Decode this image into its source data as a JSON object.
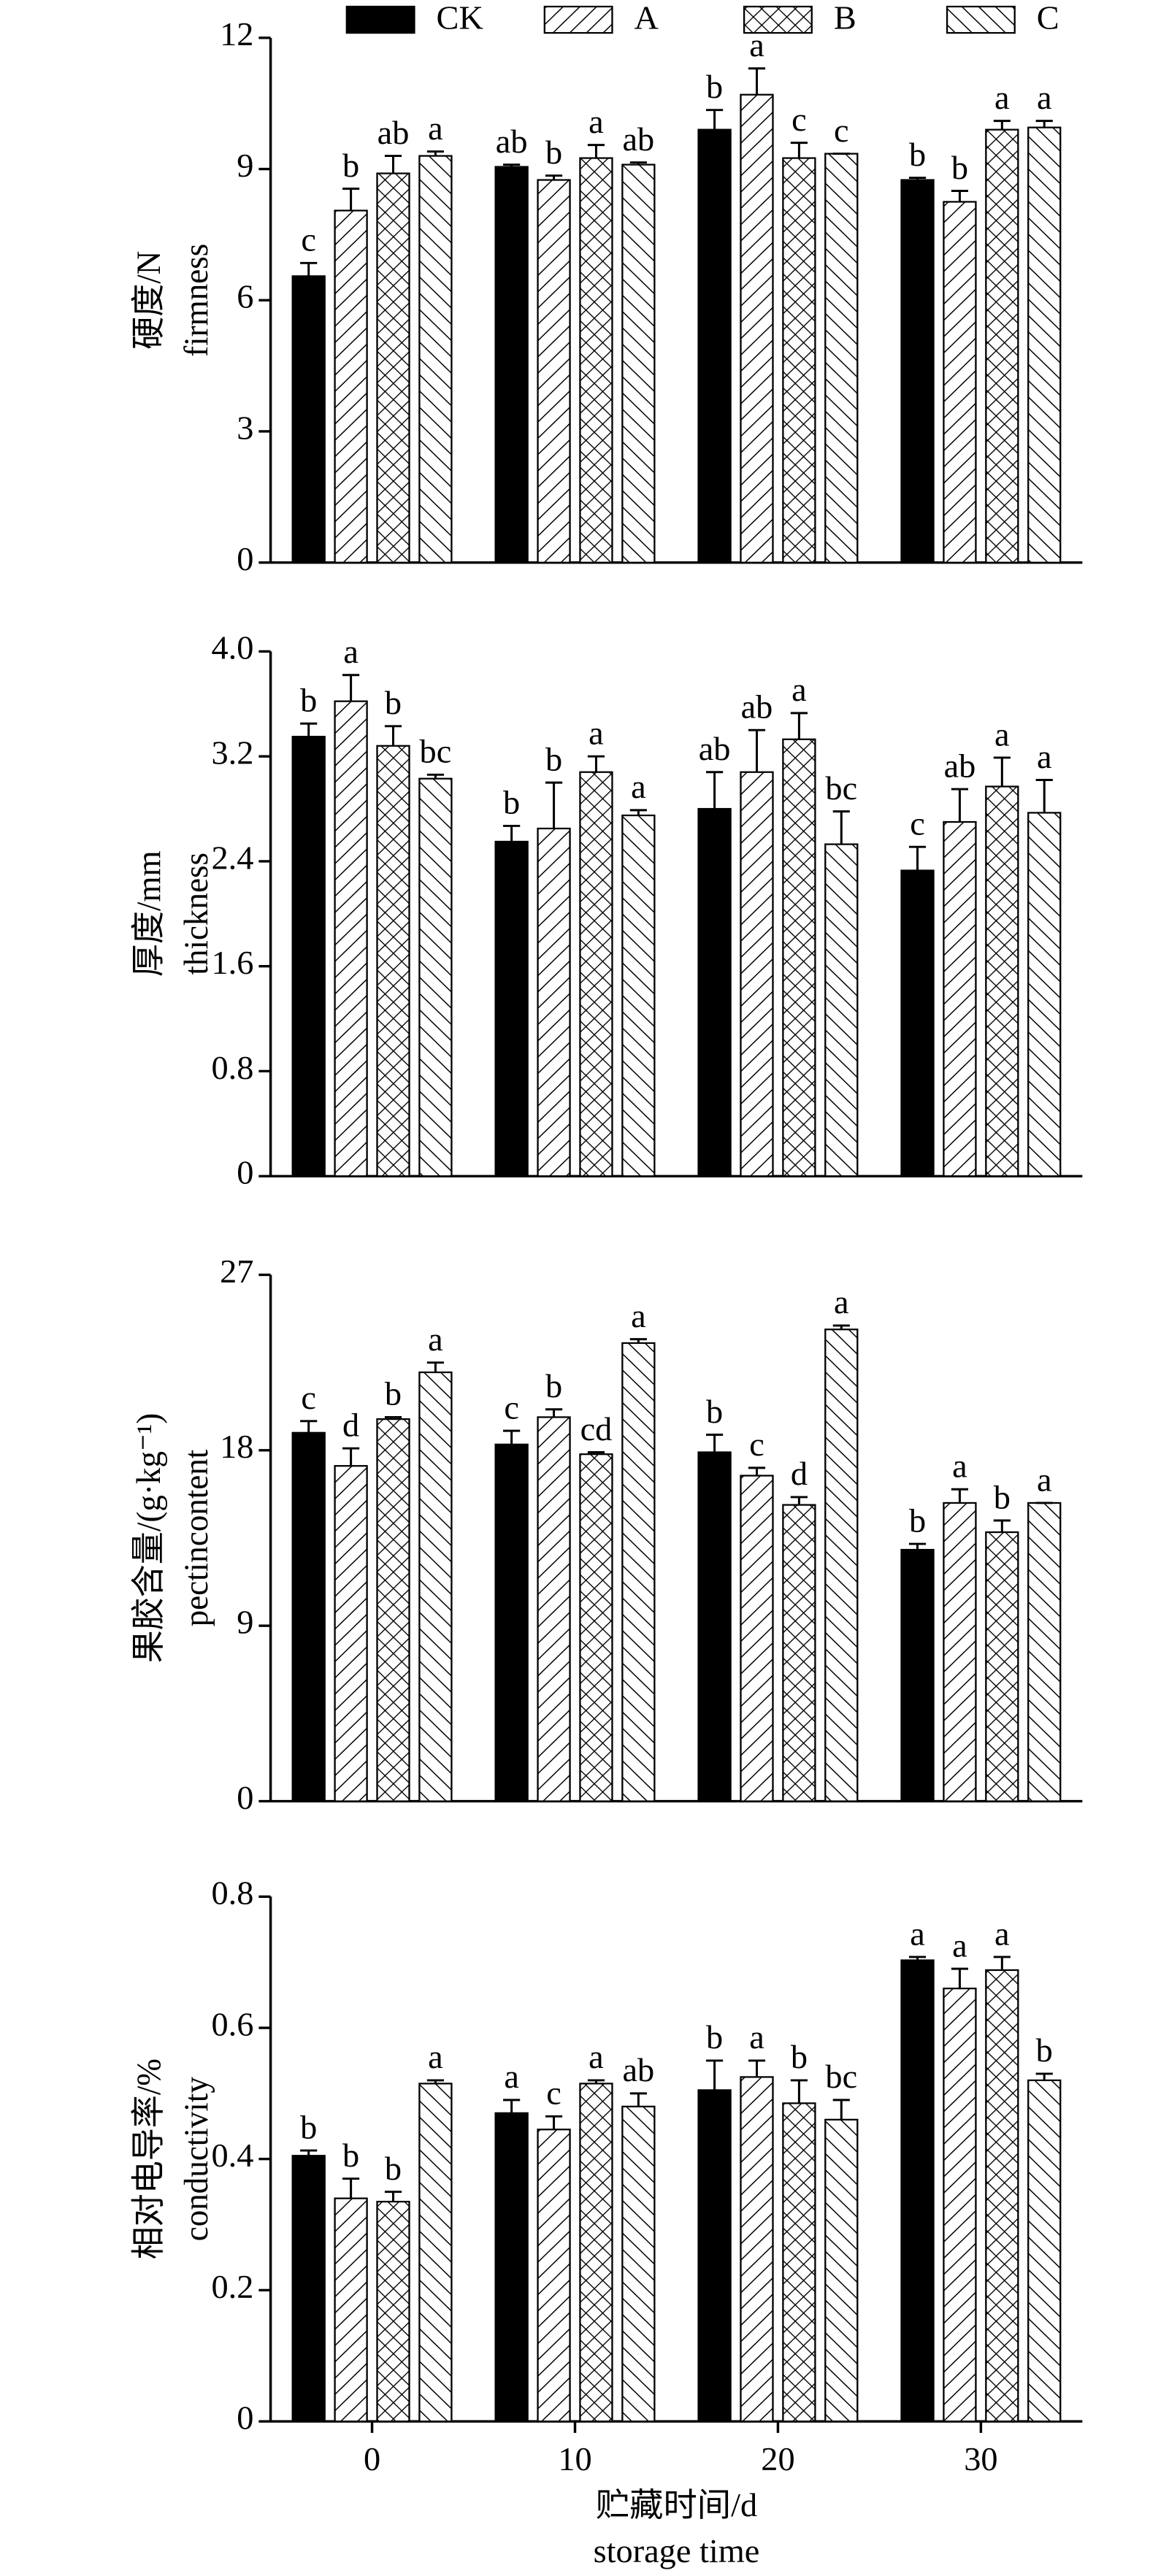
{
  "chart_data": [
    {
      "type": "bar",
      "ylabel": "硬度/N",
      "ylabel_en": "firmness",
      "ylim": [
        0,
        12
      ],
      "yticks": [
        0,
        3,
        6,
        9,
        12
      ],
      "series": [
        {
          "name": "CK",
          "color": "#000000",
          "hatch": "solid",
          "values": [
            6.55,
            9.05,
            9.9,
            8.75
          ],
          "errors": [
            0.3,
            0.05,
            0.45,
            0.05
          ],
          "letters": [
            "c",
            "ab",
            "b",
            "b"
          ]
        },
        {
          "name": "A",
          "color": "#000000",
          "hatch": "slash",
          "values": [
            8.05,
            8.75,
            10.7,
            8.25
          ],
          "errors": [
            0.5,
            0.1,
            0.6,
            0.25
          ],
          "letters": [
            "b",
            "b",
            "a",
            "b"
          ]
        },
        {
          "name": "B",
          "color": "#000000",
          "hatch": "cross",
          "values": [
            8.9,
            9.25,
            9.25,
            9.9
          ],
          "errors": [
            0.4,
            0.3,
            0.35,
            0.2
          ],
          "letters": [
            "ab",
            "a",
            "c",
            "a"
          ]
        },
        {
          "name": "C",
          "color": "#000000",
          "hatch": "backslash",
          "values": [
            9.3,
            9.1,
            9.35,
            9.95
          ],
          "errors": [
            0.1,
            0.05,
            0,
            0.15
          ],
          "letters": [
            "a",
            "ab",
            "c",
            "a"
          ]
        }
      ]
    },
    {
      "type": "bar",
      "ylabel": "厚度/mm",
      "ylabel_en": "thickness",
      "ylim": [
        0,
        4
      ],
      "yticks": [
        0,
        0.8,
        1.6,
        2.4,
        3.2,
        {
          "value": 4,
          "label": "4.0"
        }
      ],
      "series": [
        {
          "color": "#000000",
          "hatch": "solid",
          "values": [
            3.35,
            2.55,
            2.8,
            2.33
          ],
          "errors": [
            0.1,
            0.12,
            0.28,
            0.18
          ],
          "letters": [
            "b",
            "b",
            "ab",
            "c"
          ]
        },
        {
          "color": "#000000",
          "hatch": "slash",
          "values": [
            3.62,
            2.65,
            3.08,
            2.7
          ],
          "errors": [
            0.2,
            0.35,
            0.32,
            0.25
          ],
          "letters": [
            "a",
            "b",
            "ab",
            "ab"
          ]
        },
        {
          "color": "#000000",
          "hatch": "cross",
          "values": [
            3.28,
            3.08,
            3.33,
            2.97
          ],
          "errors": [
            0.15,
            0.12,
            0.2,
            0.22
          ],
          "letters": [
            "b",
            "a",
            "a",
            "a"
          ]
        },
        {
          "color": "#000000",
          "hatch": "backslash",
          "values": [
            3.03,
            2.75,
            2.53,
            2.77
          ],
          "errors": [
            0.03,
            0.04,
            0.25,
            0.25
          ],
          "letters": [
            "bc",
            "a",
            "bc",
            "a"
          ]
        }
      ]
    },
    {
      "type": "bar",
      "ylabel": "果胶含量/(g·kg⁻¹)",
      "ylabel_en": "pectincontent",
      "ylim": [
        0,
        27
      ],
      "yticks": [
        0,
        9,
        18,
        27
      ],
      "series": [
        {
          "color": "#000000",
          "hatch": "solid",
          "values": [
            18.9,
            18.3,
            17.9,
            12.9
          ],
          "errors": [
            0.6,
            0.7,
            0.9,
            0.3
          ],
          "letters": [
            "c",
            "c",
            "b",
            "b"
          ]
        },
        {
          "color": "#000000",
          "hatch": "slash",
          "values": [
            17.2,
            19.7,
            16.7,
            15.3
          ],
          "errors": [
            0.9,
            0.4,
            0.4,
            0.7
          ],
          "letters": [
            "d",
            "b",
            "c",
            "a"
          ]
        },
        {
          "color": "#000000",
          "hatch": "cross",
          "values": [
            19.6,
            17.8,
            15.2,
            13.8
          ],
          "errors": [
            0.1,
            0.1,
            0.4,
            0.6
          ],
          "letters": [
            "b",
            "cd",
            "d",
            "b"
          ]
        },
        {
          "color": "#000000",
          "hatch": "backslash",
          "values": [
            22.0,
            23.5,
            24.2,
            15.3
          ],
          "errors": [
            0.5,
            0.2,
            0.2,
            0
          ],
          "letters": [
            "a",
            "a",
            "a",
            "a"
          ]
        }
      ]
    },
    {
      "type": "bar",
      "ylabel": "相对电导率/%",
      "ylabel_en": "conductivity",
      "ylim": [
        0,
        0.8
      ],
      "yticks": [
        0,
        0.2,
        0.4,
        0.6,
        0.8
      ],
      "categories": [
        "0",
        "10",
        "20",
        "30"
      ],
      "xlabel": "贮藏时间/d",
      "xlabel_en": "storage time",
      "series": [
        {
          "color": "#000000",
          "hatch": "solid",
          "values": [
            0.405,
            0.47,
            0.505,
            0.703
          ],
          "errors": [
            0.008,
            0.02,
            0.045,
            0.005
          ],
          "letters": [
            "b",
            "a",
            "b",
            "a"
          ]
        },
        {
          "color": "#000000",
          "hatch": "slash",
          "values": [
            0.34,
            0.445,
            0.525,
            0.66
          ],
          "errors": [
            0.03,
            0.02,
            0.025,
            0.03
          ],
          "letters": [
            "b",
            "c",
            "a",
            "a"
          ]
        },
        {
          "color": "#000000",
          "hatch": "cross",
          "values": [
            0.335,
            0.515,
            0.485,
            0.688
          ],
          "errors": [
            0.015,
            0.005,
            0.035,
            0.02
          ],
          "letters": [
            "b",
            "a",
            "b",
            "a"
          ]
        },
        {
          "color": "#000000",
          "hatch": "backslash",
          "values": [
            0.515,
            0.48,
            0.46,
            0.52
          ],
          "errors": [
            0.005,
            0.02,
            0.03,
            0.01
          ],
          "letters": [
            "a",
            "ab",
            "bc",
            "b"
          ]
        }
      ]
    }
  ]
}
